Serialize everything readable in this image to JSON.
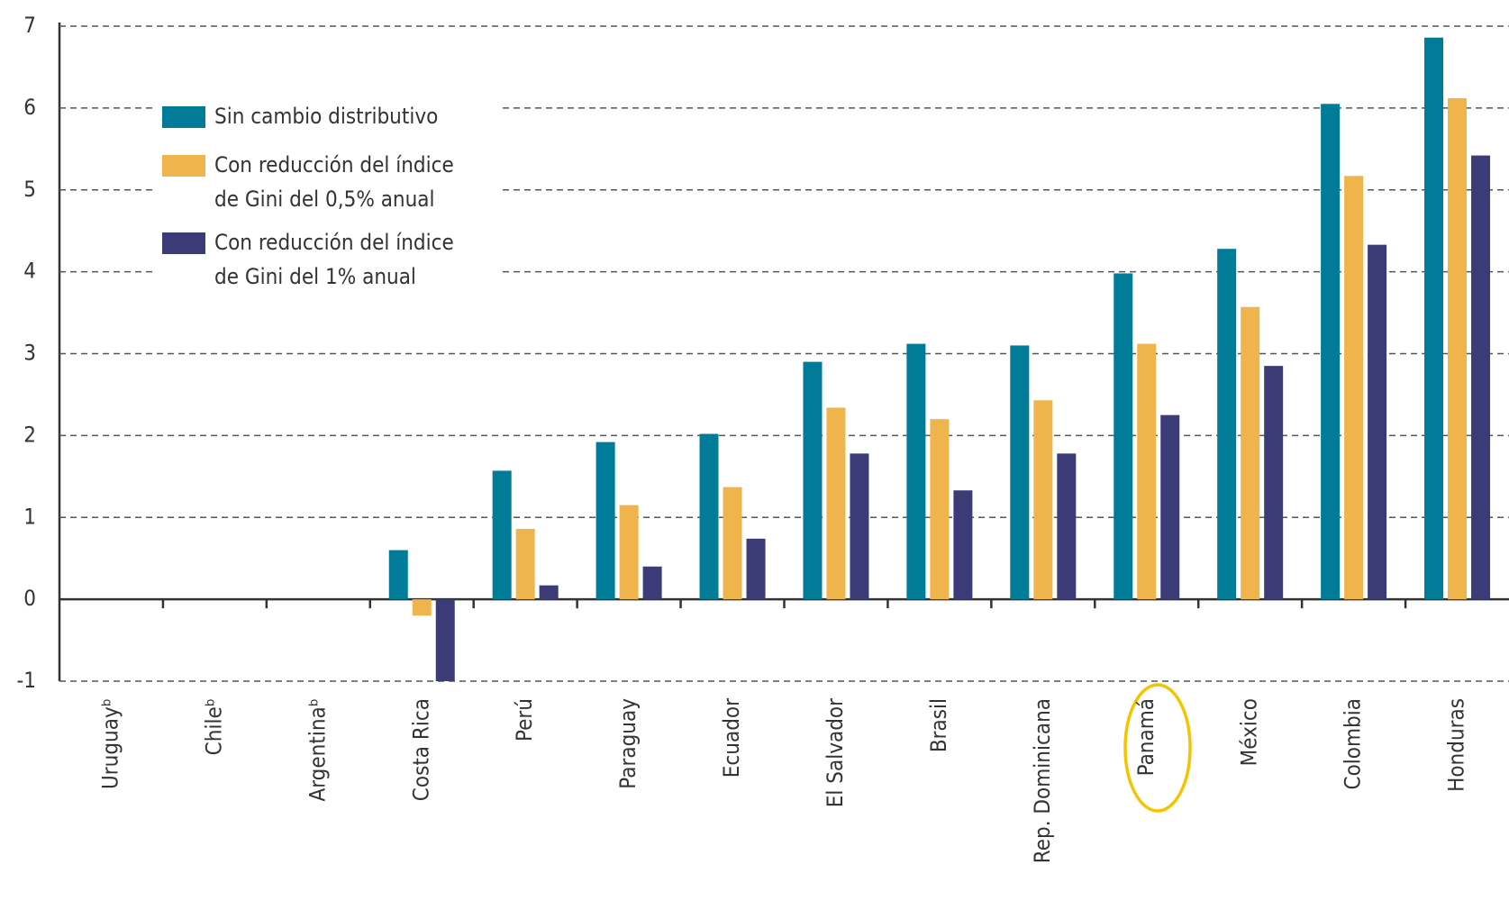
{
  "chart_data": {
    "type": "bar",
    "categories": [
      "Uruguayᵇ",
      "Chileᵇ",
      "Argentinaᵇ",
      "Costa Rica",
      "Perú",
      "Paraguay",
      "Ecuador",
      "El Salvador",
      "Brasil",
      "Rep. Dominicana",
      "Panamá",
      "México",
      "Colombia",
      "Honduras"
    ],
    "series": [
      {
        "name": "Sin cambio distributivo",
        "color": "#007c99",
        "values": [
          null,
          null,
          null,
          0.6,
          1.57,
          1.92,
          2.02,
          2.9,
          3.12,
          3.1,
          3.98,
          4.28,
          6.05,
          6.86
        ]
      },
      {
        "name": "Con reducción del índice de Gini del 0,5% anual",
        "color": "#f0b44c",
        "values": [
          null,
          null,
          null,
          -0.2,
          0.86,
          1.15,
          1.37,
          2.34,
          2.2,
          2.43,
          3.12,
          3.57,
          5.17,
          6.12
        ]
      },
      {
        "name": "Con reducción del índice de Gini del 1% anual",
        "color": "#3b3b78",
        "values": [
          null,
          null,
          null,
          -1.0,
          0.17,
          0.4,
          0.74,
          1.78,
          1.33,
          1.78,
          2.25,
          2.85,
          4.33,
          5.42
        ]
      }
    ],
    "ylim": [
      -1,
      7
    ],
    "yticks": [
      -1,
      0,
      1,
      2,
      3,
      4,
      5,
      6,
      7
    ],
    "grid": true,
    "legend": "upper left"
  }
}
